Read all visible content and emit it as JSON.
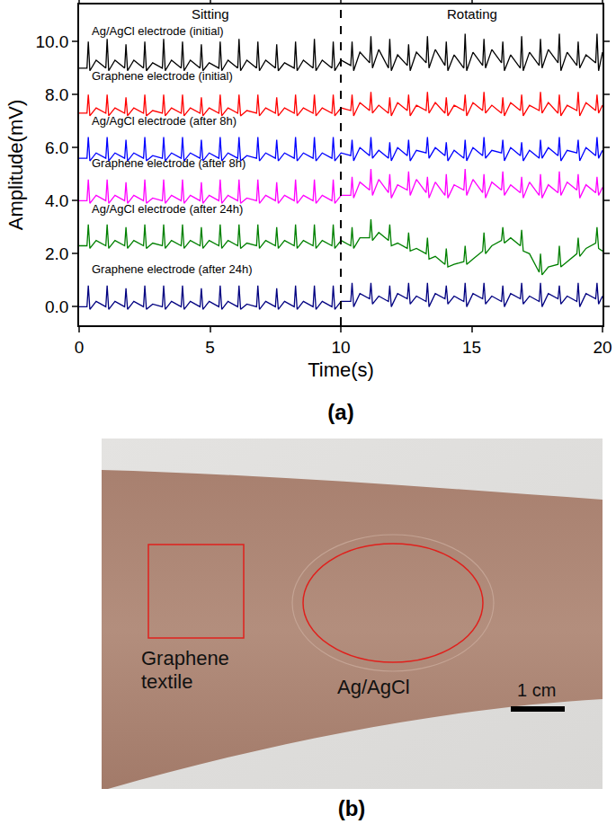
{
  "chart_data": {
    "type": "line",
    "caption": "(a)",
    "x_label": "Time(s)",
    "y_label": "Amplitude(mV)",
    "xlim": [
      0,
      20
    ],
    "xticks": [
      0,
      5,
      10,
      15,
      20
    ],
    "ylim": [
      -0.7,
      11.4
    ],
    "yticks": [
      {
        "value": 0,
        "label": "0.0"
      },
      {
        "value": 2,
        "label": "2.0"
      },
      {
        "value": 4,
        "label": "4.0"
      },
      {
        "value": 6,
        "label": "6.0"
      },
      {
        "value": 8,
        "label": "8.0"
      },
      {
        "value": 10,
        "label": "10.0"
      }
    ],
    "grid": false,
    "vertical_line": 10,
    "annotations": [
      {
        "text": "Sitting",
        "x": 5
      },
      {
        "text": "Rotating",
        "x": 15
      }
    ],
    "x": [
      0,
      0.3,
      0.35,
      0.41,
      0.65,
      1.02,
      1.07,
      1.13,
      1.37,
      1.74,
      1.79,
      1.85,
      2.09,
      2.46,
      2.51,
      2.57,
      2.81,
      3.18,
      3.23,
      3.29,
      3.53,
      3.9,
      3.95,
      4.01,
      4.25,
      4.62,
      4.67,
      4.73,
      4.97,
      5.34,
      5.39,
      5.45,
      5.69,
      6.06,
      6.11,
      6.17,
      6.41,
      6.78,
      6.83,
      6.89,
      7.13,
      7.5,
      7.55,
      7.61,
      7.85,
      8.22,
      8.27,
      8.33,
      8.57,
      8.94,
      8.99,
      9.05,
      9.29,
      9.66,
      9.71,
      9.77,
      10.01,
      10.38,
      10.43,
      10.49,
      10.73,
      11.1,
      11.15,
      11.21,
      11.45,
      11.82,
      11.87,
      11.93,
      12.17,
      12.54,
      12.59,
      12.65,
      12.89,
      13.26,
      13.31,
      13.37,
      13.61,
      13.98,
      14.03,
      14.09,
      14.33,
      14.7,
      14.75,
      14.81,
      15.05,
      15.42,
      15.47,
      15.53,
      15.77,
      16.14,
      16.19,
      16.25,
      16.49,
      16.86,
      16.91,
      16.97,
      17.21,
      17.58,
      17.63,
      17.69,
      17.93,
      18.3,
      18.35,
      18.41,
      18.65,
      19.02,
      19.07,
      19.13,
      19.37,
      19.74,
      19.79,
      19.85,
      20.0
    ],
    "series": [
      {
        "name": "Ag/AgCl electrode (initial)",
        "color": "#000000",
        "values": [
          9.0,
          9.0,
          10.0,
          8.9,
          9.3,
          9.0,
          10.1,
          8.9,
          9.3,
          9.0,
          9.9,
          8.9,
          9.3,
          9.0,
          10.0,
          8.9,
          9.2,
          9.0,
          10.1,
          8.9,
          9.3,
          9.0,
          10.0,
          8.9,
          9.3,
          9.0,
          9.9,
          8.9,
          9.2,
          9.0,
          10.0,
          8.9,
          9.3,
          9.0,
          10.1,
          8.9,
          9.3,
          9.0,
          10.0,
          8.9,
          9.3,
          9.0,
          9.9,
          8.9,
          9.2,
          9.0,
          10.0,
          8.9,
          9.3,
          9.0,
          10.1,
          8.9,
          9.3,
          9.0,
          10.0,
          8.9,
          9.3,
          9.1,
          10.0,
          8.9,
          9.6,
          9.2,
          10.2,
          9.0,
          9.7,
          9.0,
          10.1,
          8.9,
          9.5,
          9.1,
          9.9,
          8.9,
          9.6,
          9.2,
          10.2,
          9.0,
          9.7,
          9.1,
          10.0,
          8.9,
          9.5,
          9.0,
          10.3,
          8.9,
          9.6,
          9.1,
          10.1,
          9.0,
          9.7,
          9.2,
          10.0,
          8.9,
          9.5,
          9.0,
          10.2,
          8.9,
          9.6,
          9.1,
          10.1,
          9.0,
          9.7,
          9.2,
          10.3,
          8.9,
          9.6,
          9.1,
          10.0,
          9.0,
          9.5,
          9.2,
          10.3,
          8.9,
          9.6
        ]
      },
      {
        "name": "Graphene electrode (initial)",
        "color": "#ff0000",
        "values": [
          7.3,
          7.3,
          8.0,
          7.2,
          7.5,
          7.3,
          8.0,
          7.2,
          7.5,
          7.3,
          7.9,
          7.2,
          7.5,
          7.3,
          8.0,
          7.2,
          7.4,
          7.3,
          8.0,
          7.2,
          7.5,
          7.3,
          8.0,
          7.2,
          7.5,
          7.3,
          7.9,
          7.2,
          7.5,
          7.3,
          8.0,
          7.2,
          7.5,
          7.3,
          8.0,
          7.2,
          7.4,
          7.3,
          8.0,
          7.2,
          7.5,
          7.3,
          7.9,
          7.2,
          7.5,
          7.3,
          8.0,
          7.2,
          7.5,
          7.3,
          8.0,
          7.2,
          7.5,
          7.3,
          8.0,
          7.2,
          7.5,
          7.4,
          8.0,
          7.2,
          7.7,
          7.4,
          8.1,
          7.3,
          7.6,
          7.3,
          7.9,
          7.2,
          7.7,
          7.4,
          8.0,
          7.2,
          7.6,
          7.4,
          8.1,
          7.3,
          7.7,
          7.3,
          7.9,
          7.2,
          7.6,
          7.4,
          8.0,
          7.2,
          7.7,
          7.4,
          8.1,
          7.3,
          7.6,
          7.3,
          7.9,
          7.2,
          7.7,
          7.4,
          8.0,
          7.2,
          7.6,
          7.4,
          8.1,
          7.3,
          7.7,
          7.3,
          8.0,
          7.2,
          7.6,
          7.4,
          8.1,
          7.2,
          7.7,
          7.4,
          8.0,
          7.3,
          7.6
        ]
      },
      {
        "name": "Ag/AgCl electrode (after 8h)",
        "color": "#0000ff",
        "values": [
          5.6,
          5.6,
          6.4,
          5.5,
          5.8,
          5.6,
          6.4,
          5.5,
          5.8,
          5.6,
          6.3,
          5.5,
          5.8,
          5.6,
          6.4,
          5.5,
          5.7,
          5.6,
          6.4,
          5.5,
          5.8,
          5.6,
          6.4,
          5.5,
          5.8,
          5.6,
          6.3,
          5.5,
          5.8,
          5.6,
          6.4,
          5.5,
          5.8,
          5.6,
          6.4,
          5.5,
          5.7,
          5.6,
          6.4,
          5.5,
          5.8,
          5.6,
          6.3,
          5.5,
          5.8,
          5.6,
          6.4,
          5.5,
          5.8,
          5.6,
          6.4,
          5.5,
          5.8,
          5.6,
          6.4,
          5.5,
          5.8,
          5.7,
          6.3,
          5.5,
          6.0,
          5.7,
          6.4,
          5.6,
          5.9,
          5.6,
          6.2,
          5.5,
          6.0,
          5.7,
          6.3,
          5.5,
          5.9,
          5.8,
          6.4,
          5.6,
          6.0,
          5.7,
          6.2,
          5.5,
          5.9,
          5.6,
          6.3,
          5.5,
          6.0,
          5.7,
          6.4,
          5.6,
          5.9,
          5.8,
          6.3,
          5.5,
          6.0,
          5.7,
          6.2,
          5.5,
          5.9,
          5.6,
          6.3,
          5.6,
          6.0,
          5.7,
          6.4,
          5.5,
          5.9,
          5.8,
          6.3,
          5.5,
          6.0,
          5.7,
          6.4,
          5.6,
          5.9
        ]
      },
      {
        "name": "Graphene electrode (after 8h)",
        "color": "#ff00ff",
        "values": [
          4.0,
          4.0,
          4.8,
          3.9,
          4.2,
          4.0,
          4.8,
          3.9,
          4.2,
          4.0,
          4.7,
          3.9,
          4.2,
          4.0,
          4.8,
          3.9,
          4.1,
          4.0,
          4.8,
          3.9,
          4.2,
          4.0,
          4.8,
          3.9,
          4.2,
          4.0,
          4.7,
          3.9,
          4.2,
          4.0,
          4.8,
          3.9,
          4.2,
          4.0,
          4.8,
          3.9,
          4.1,
          4.0,
          4.8,
          3.9,
          4.2,
          4.0,
          4.7,
          3.9,
          4.2,
          4.0,
          4.8,
          3.9,
          4.2,
          4.0,
          4.8,
          3.9,
          4.2,
          4.0,
          4.8,
          3.9,
          4.2,
          4.2,
          4.9,
          4.1,
          4.7,
          4.4,
          5.2,
          4.2,
          4.8,
          4.3,
          5.0,
          4.1,
          4.6,
          4.4,
          5.1,
          4.2,
          4.8,
          4.3,
          4.9,
          4.1,
          4.7,
          4.2,
          5.0,
          4.1,
          4.6,
          4.4,
          5.2,
          4.2,
          4.8,
          4.3,
          5.0,
          4.1,
          4.7,
          4.4,
          5.1,
          4.2,
          4.6,
          4.3,
          4.9,
          4.1,
          4.7,
          4.2,
          5.0,
          4.1,
          4.6,
          4.3,
          5.1,
          4.2,
          4.7,
          4.4,
          5.0,
          4.1,
          4.6,
          4.3,
          4.9,
          4.2,
          4.5
        ]
      },
      {
        "name": "Ag/AgCl electrode (after 24h)",
        "color": "#008000",
        "values": [
          2.3,
          2.3,
          3.1,
          2.2,
          2.5,
          2.3,
          3.1,
          2.2,
          2.5,
          2.3,
          3.0,
          2.2,
          2.5,
          2.3,
          3.1,
          2.2,
          2.4,
          2.3,
          3.1,
          2.2,
          2.5,
          2.3,
          3.1,
          2.2,
          2.5,
          2.3,
          3.0,
          2.2,
          2.5,
          2.3,
          3.1,
          2.2,
          2.5,
          2.3,
          3.1,
          2.2,
          2.4,
          2.3,
          3.1,
          2.2,
          2.5,
          2.3,
          3.0,
          2.2,
          2.5,
          2.3,
          3.1,
          2.2,
          2.5,
          2.3,
          3.1,
          2.2,
          2.5,
          2.3,
          3.1,
          2.2,
          2.5,
          2.3,
          3.0,
          2.2,
          2.6,
          2.6,
          3.3,
          2.5,
          2.8,
          2.5,
          3.1,
          2.3,
          2.4,
          2.2,
          2.8,
          2.1,
          2.2,
          2.0,
          2.6,
          1.8,
          1.9,
          1.6,
          2.2,
          1.5,
          1.6,
          1.7,
          2.3,
          1.6,
          1.8,
          2.1,
          2.8,
          2.0,
          2.3,
          2.5,
          3.0,
          2.4,
          2.6,
          2.3,
          2.9,
          2.1,
          2.0,
          1.3,
          2.0,
          1.2,
          1.5,
          1.6,
          2.3,
          1.5,
          1.7,
          2.0,
          2.6,
          1.9,
          2.2,
          2.4,
          3.0,
          2.2,
          2.1
        ]
      },
      {
        "name": "Graphene electrode (after 24h)",
        "color": "#000080",
        "values": [
          0.0,
          0.0,
          0.8,
          -0.1,
          0.2,
          0.0,
          0.8,
          -0.1,
          0.2,
          0.0,
          0.7,
          -0.1,
          0.2,
          0.0,
          0.8,
          -0.1,
          0.1,
          0.0,
          0.8,
          -0.1,
          0.2,
          0.0,
          0.8,
          -0.1,
          0.2,
          0.0,
          0.7,
          -0.1,
          0.2,
          0.0,
          0.8,
          -0.1,
          0.2,
          0.0,
          0.8,
          -0.1,
          0.1,
          0.0,
          0.8,
          -0.1,
          0.2,
          0.0,
          0.7,
          -0.1,
          0.2,
          0.0,
          0.8,
          -0.1,
          0.2,
          0.0,
          0.8,
          -0.1,
          0.2,
          0.0,
          0.8,
          -0.1,
          0.2,
          0.2,
          0.9,
          0.0,
          0.5,
          0.3,
          0.9,
          0.1,
          0.4,
          0.2,
          0.8,
          0.0,
          0.5,
          0.3,
          0.9,
          0.1,
          0.4,
          0.2,
          0.9,
          0.0,
          0.5,
          0.3,
          0.8,
          0.1,
          0.4,
          0.2,
          0.9,
          0.0,
          0.5,
          0.3,
          0.9,
          0.1,
          0.4,
          0.2,
          0.8,
          0.0,
          0.5,
          0.3,
          0.9,
          0.1,
          0.4,
          0.2,
          0.9,
          0.0,
          0.5,
          0.3,
          0.8,
          0.1,
          0.4,
          0.2,
          0.9,
          0.0,
          0.5,
          0.3,
          0.9,
          0.1,
          0.4
        ]
      }
    ]
  },
  "photo": {
    "caption": "(b)",
    "labels": [
      {
        "text": "Graphene textile",
        "shape": "square"
      },
      {
        "text": "Ag/AgCl",
        "shape": "ellipse"
      }
    ],
    "scale_bar": "1 cm"
  }
}
